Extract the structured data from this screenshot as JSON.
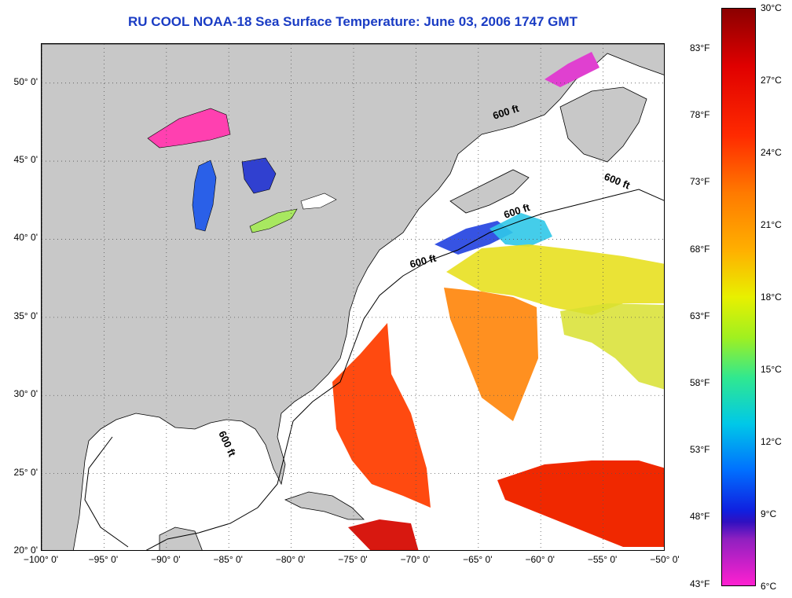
{
  "title": "RU COOL  NOAA-18  Sea Surface Temperature:  June 03, 2006 1747 GMT",
  "map": {
    "lon_range": [
      -100,
      -50
    ],
    "lat_range": [
      20,
      52.5
    ],
    "lat_ticks": [
      {
        "value": 20,
        "label": "20° 0'"
      },
      {
        "value": 25,
        "label": "25° 0'"
      },
      {
        "value": 30,
        "label": "30° 0'"
      },
      {
        "value": 35,
        "label": "35° 0'"
      },
      {
        "value": 40,
        "label": "40° 0'"
      },
      {
        "value": 45,
        "label": "45° 0'"
      },
      {
        "value": 50,
        "label": "50° 0'"
      }
    ],
    "lon_ticks": [
      {
        "value": -100,
        "label": "−100° 0'"
      },
      {
        "value": -95,
        "label": "−95° 0'"
      },
      {
        "value": -90,
        "label": "−90° 0'"
      },
      {
        "value": -85,
        "label": "−85° 0'"
      },
      {
        "value": -80,
        "label": "−80° 0'"
      },
      {
        "value": -75,
        "label": "−75° 0'"
      },
      {
        "value": -70,
        "label": "−70° 0'"
      },
      {
        "value": -65,
        "label": "−65° 0'"
      },
      {
        "value": -60,
        "label": "−60° 0'"
      },
      {
        "value": -55,
        "label": "−55° 0'"
      },
      {
        "value": -50,
        "label": "−50° 0'"
      }
    ],
    "contour_label": "600 ft",
    "colors": {
      "land": "#c8c8c8",
      "ocean": "#ffffff",
      "grid": "#555555"
    }
  },
  "colorbar": {
    "celsius_range": [
      6,
      30
    ],
    "celsius_ticks": [
      {
        "value": 30,
        "label": "30°C"
      },
      {
        "value": 27,
        "label": "27°C"
      },
      {
        "value": 24,
        "label": "24°C"
      },
      {
        "value": 21,
        "label": "21°C"
      },
      {
        "value": 18,
        "label": "18°C"
      },
      {
        "value": 15,
        "label": "15°C"
      },
      {
        "value": 12,
        "label": "12°C"
      },
      {
        "value": 9,
        "label": "9°C"
      },
      {
        "value": 6,
        "label": "6°C"
      }
    ],
    "fahrenheit_ticks": [
      {
        "value": 83,
        "label": "83°F"
      },
      {
        "value": 78,
        "label": "78°F"
      },
      {
        "value": 73,
        "label": "73°F"
      },
      {
        "value": 68,
        "label": "68°F"
      },
      {
        "value": 63,
        "label": "63°F"
      },
      {
        "value": 58,
        "label": "58°F"
      },
      {
        "value": 53,
        "label": "53°F"
      },
      {
        "value": 48,
        "label": "48°F"
      },
      {
        "value": 43,
        "label": "43°F"
      }
    ]
  }
}
